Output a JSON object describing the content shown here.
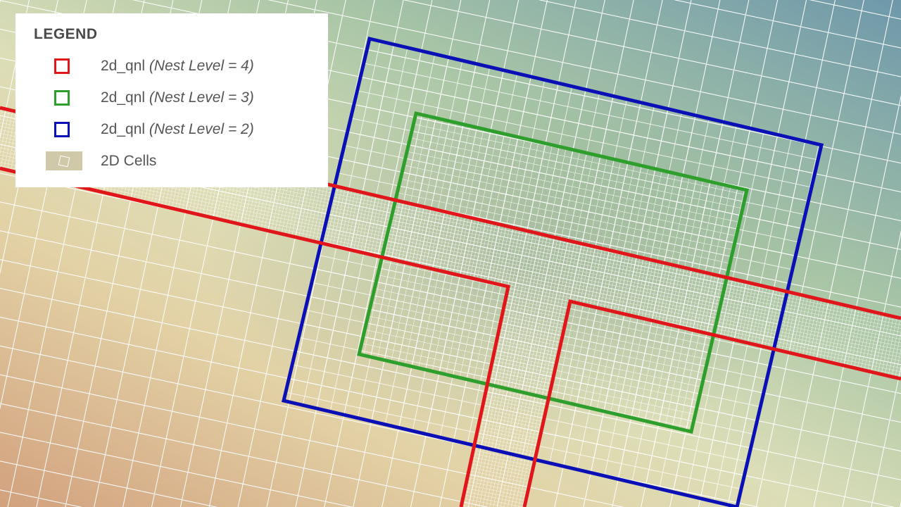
{
  "legend": {
    "title": "LEGEND",
    "items": [
      {
        "name": "2d_qnl",
        "detail": "(Nest Level = 4)",
        "color": "#e0161b",
        "symbol": "outline-square"
      },
      {
        "name": "2d_qnl",
        "detail": "(Nest Level = 3)",
        "color": "#2e9e2c",
        "symbol": "outline-square"
      },
      {
        "name": "2d_qnl",
        "detail": "(Nest Level = 2)",
        "color": "#0a10b5",
        "symbol": "outline-square"
      },
      {
        "name": "2D Cells",
        "detail": "",
        "color": "#cfc9a9",
        "symbol": "cell-fill"
      }
    ]
  },
  "map": {
    "background_colors": [
      "#c7a16f",
      "#dfe0b8",
      "#a9c8a8",
      "#6f9db0"
    ],
    "grid_line_color": "#ffffff"
  }
}
